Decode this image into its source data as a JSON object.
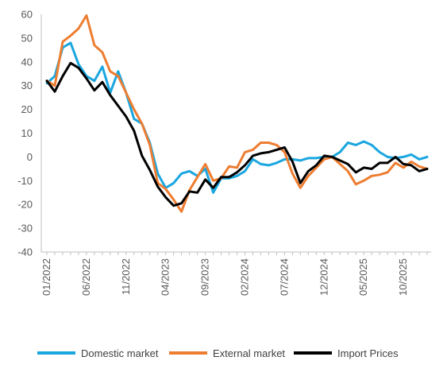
{
  "chart_data": {
    "type": "line",
    "title": "",
    "xlabel": "",
    "ylabel": "",
    "ylim": [
      -40,
      60
    ],
    "y_ticks": [
      60,
      50,
      40,
      30,
      20,
      10,
      0,
      -10,
      -20,
      -30,
      -40
    ],
    "x_tick_labels": [
      "01/2022",
      "06/2022",
      "11/2022",
      "04/2023",
      "09/2023",
      "02/2024",
      "07/2024",
      "12/2024",
      "05/2025",
      "10/2025"
    ],
    "grid": false,
    "legend_position": "bottom",
    "x": [
      "01/2022",
      "02/2022",
      "03/2022",
      "04/2022",
      "05/2022",
      "06/2022",
      "07/2022",
      "08/2022",
      "09/2022",
      "10/2022",
      "11/2022",
      "12/2022",
      "01/2023",
      "02/2023",
      "03/2023",
      "04/2023",
      "05/2023",
      "06/2023",
      "07/2023",
      "08/2023",
      "09/2023",
      "10/2023",
      "11/2023",
      "12/2023",
      "01/2024",
      "02/2024",
      "03/2024",
      "04/2024",
      "05/2024",
      "06/2024",
      "07/2024",
      "08/2024",
      "09/2024",
      "10/2024",
      "11/2024",
      "12/2024",
      "01/2025",
      "02/2025",
      "03/2025",
      "04/2025",
      "05/2025",
      "06/2025",
      "07/2025",
      "08/2025",
      "09/2025",
      "10/2025",
      "11/2025",
      "12/2025",
      "01/2026"
    ],
    "series": [
      {
        "name": "Domestic market",
        "color": "#1aa6df",
        "values": [
          31,
          34,
          46,
          48,
          39,
          34,
          32,
          38,
          27,
          36,
          27,
          16,
          14,
          6,
          -7,
          -13,
          -11,
          -7,
          -6,
          -8,
          -5,
          -15,
          -9,
          -9,
          -8,
          -6,
          -1,
          -3,
          -3.5,
          -2.5,
          -1,
          -1,
          -1.5,
          -0.5,
          -0.5,
          0,
          0,
          2,
          6,
          5,
          6.5,
          5,
          2,
          0,
          -0.5,
          0,
          1,
          -1,
          0
        ]
      },
      {
        "name": "External market",
        "color": "#ed7d31",
        "values": [
          32,
          30,
          48.5,
          51,
          54,
          59.5,
          47,
          44,
          36,
          34,
          27,
          20,
          14,
          5,
          -11,
          -13.5,
          -18,
          -23,
          -14,
          -8.5,
          -3,
          -10,
          -9,
          -4,
          -4.5,
          2,
          3,
          6,
          6,
          5,
          2,
          -7,
          -13,
          -8,
          -4.5,
          -1,
          0,
          -3,
          -6,
          -11.5,
          -10,
          -8,
          -7.5,
          -6.5,
          -2.5,
          -4.5,
          -2,
          -4,
          -5
        ]
      },
      {
        "name": "Import Prices",
        "color": "#000000",
        "values": [
          32,
          27.5,
          34,
          39.5,
          37.5,
          33,
          28,
          31.5,
          26,
          21.5,
          17,
          11,
          0.5,
          -5.5,
          -12.5,
          -17,
          -20.5,
          -19.5,
          -14.5,
          -15,
          -9.5,
          -13,
          -8.5,
          -8.5,
          -6.5,
          -3.5,
          0.5,
          1.5,
          2,
          3,
          4,
          -2,
          -11,
          -6,
          -3.5,
          0.5,
          0,
          -1.5,
          -3,
          -6.5,
          -4.5,
          -5,
          -2.5,
          -2.5,
          0,
          -3,
          -3.5,
          -6,
          -5
        ]
      }
    ]
  }
}
